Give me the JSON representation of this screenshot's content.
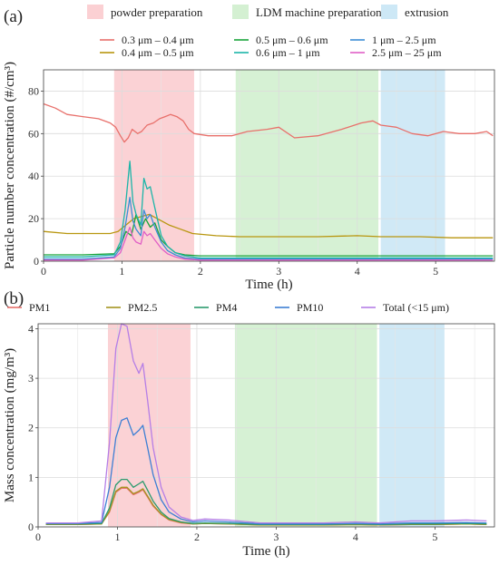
{
  "chart_data": [
    {
      "panel_label": "(a)",
      "type": "line",
      "xlabel": "Time (h)",
      "ylabel": "Particle number concentration (#/cm³)",
      "xlim": [
        0,
        5.75
      ],
      "ylim": [
        0,
        90
      ],
      "xticks": [
        0,
        1,
        2,
        3,
        4,
        5
      ],
      "yticks": [
        0,
        20,
        40,
        60,
        80
      ],
      "grid": true,
      "legend_position": "top",
      "phases": [
        {
          "label": "powder preparation",
          "x0": 0.9,
          "x1": 1.92,
          "color": "#fbd0d3"
        },
        {
          "label": "LDM machine preparation",
          "x0": 2.45,
          "x1": 4.27,
          "color": "#d4f0d2"
        },
        {
          "label": "extrusion",
          "x0": 4.3,
          "x1": 5.12,
          "color": "#cde8f6"
        }
      ],
      "series": [
        {
          "name": "0.3 μm – 0.4 μm",
          "color": "#e8706b",
          "x": [
            0,
            0.15,
            0.3,
            0.5,
            0.7,
            0.85,
            0.92,
            0.98,
            1.03,
            1.08,
            1.13,
            1.2,
            1.25,
            1.32,
            1.4,
            1.48,
            1.55,
            1.62,
            1.7,
            1.78,
            1.85,
            1.92,
            2.1,
            2.4,
            2.6,
            2.85,
            3.0,
            3.2,
            3.5,
            3.8,
            4.05,
            4.2,
            4.3,
            4.5,
            4.7,
            4.9,
            5.1,
            5.3,
            5.5,
            5.65,
            5.73
          ],
          "y": [
            74,
            72,
            69,
            68,
            67,
            65,
            63,
            59,
            56,
            58,
            62,
            60,
            61,
            64,
            65,
            67,
            68,
            69,
            68,
            66,
            62,
            60,
            59,
            59,
            61,
            62,
            63,
            58,
            59,
            62,
            65,
            66,
            64,
            63,
            60,
            59,
            61,
            60,
            60,
            61,
            59
          ]
        },
        {
          "name": "0.4 μm – 0.5 μm",
          "color": "#b8960f",
          "x": [
            0,
            0.3,
            0.6,
            0.85,
            0.95,
            1.05,
            1.15,
            1.25,
            1.35,
            1.45,
            1.6,
            1.75,
            1.9,
            2.2,
            2.5,
            3.0,
            3.5,
            4.0,
            4.3,
            4.8,
            5.2,
            5.73
          ],
          "y": [
            14,
            13,
            13,
            13,
            14,
            17,
            20,
            21,
            22,
            20,
            17,
            15,
            13,
            12,
            11.5,
            11.5,
            11.5,
            12,
            11.5,
            11.5,
            11,
            11
          ]
        },
        {
          "name": "0.5 μm – 0.6 μm",
          "color": "#19a33b",
          "x": [
            0,
            0.5,
            0.9,
            0.98,
            1.05,
            1.12,
            1.18,
            1.24,
            1.3,
            1.36,
            1.42,
            1.5,
            1.58,
            1.68,
            1.8,
            2.0,
            2.5,
            3.0,
            3.5,
            4.0,
            4.5,
            5.0,
            5.73
          ],
          "y": [
            3,
            3,
            3.5,
            7,
            14,
            12,
            22,
            15,
            20,
            16,
            18,
            10,
            7,
            4,
            3,
            2.5,
            2.5,
            2.5,
            2.5,
            2.5,
            2.5,
            2.5,
            2.5
          ]
        },
        {
          "name": "0.6 μm – 1 μm",
          "color": "#1bb5a8",
          "x": [
            0,
            0.5,
            0.9,
            0.98,
            1.04,
            1.1,
            1.14,
            1.18,
            1.24,
            1.28,
            1.32,
            1.36,
            1.42,
            1.5,
            1.58,
            1.68,
            1.8,
            2.0,
            2.5,
            3.0,
            3.5,
            4.0,
            4.5,
            5.0,
            5.73
          ],
          "y": [
            2,
            2,
            3,
            9,
            24,
            47,
            28,
            22,
            17,
            39,
            34,
            35,
            25,
            12,
            7,
            4,
            2.5,
            1.5,
            1.5,
            1.5,
            1.5,
            1.5,
            1.5,
            1.5,
            1.5
          ]
        },
        {
          "name": "1 μm – 2.5 μm",
          "color": "#3c8dd6",
          "x": [
            0,
            0.5,
            0.9,
            0.98,
            1.04,
            1.1,
            1.14,
            1.18,
            1.24,
            1.28,
            1.32,
            1.36,
            1.42,
            1.5,
            1.58,
            1.68,
            1.8,
            2.0,
            2.5,
            3.0,
            3.5,
            4.0,
            4.5,
            5.0,
            5.73
          ],
          "y": [
            1,
            1,
            2,
            6,
            16,
            30,
            19,
            15,
            12,
            24,
            20,
            22,
            16,
            9,
            5,
            3,
            1.5,
            1,
            1,
            1,
            1,
            1,
            1,
            1,
            1
          ]
        },
        {
          "name": "2.5 μm – 25 μm",
          "color": "#e05fc6",
          "x": [
            0,
            0.5,
            0.9,
            0.98,
            1.04,
            1.1,
            1.14,
            1.18,
            1.24,
            1.28,
            1.32,
            1.36,
            1.42,
            1.5,
            1.58,
            1.68,
            1.8,
            2.0,
            2.5,
            3.0,
            3.5,
            4.0,
            4.5,
            5.0,
            5.73
          ],
          "y": [
            0.5,
            0.5,
            1.5,
            4,
            10,
            16,
            11,
            9,
            8,
            14,
            12,
            13,
            10,
            6,
            3.5,
            2,
            1,
            0.5,
            0.5,
            0.5,
            0.5,
            0.5,
            0.5,
            0.5,
            0.5
          ]
        }
      ]
    },
    {
      "panel_label": "(b)",
      "type": "line",
      "xlabel": "Time (h)",
      "ylabel": "Mass concentration (mg/m³)",
      "xlim": [
        0,
        5.75
      ],
      "ylim": [
        0,
        4.1
      ],
      "xticks": [
        0,
        1,
        2,
        3,
        4,
        5
      ],
      "yticks": [
        0,
        1,
        2,
        3,
        4
      ],
      "grid": true,
      "legend_position": "top",
      "phases": [
        {
          "label": "powder preparation",
          "x0": 0.88,
          "x1": 1.92,
          "color": "#fbd0d3"
        },
        {
          "label": "LDM machine preparation",
          "x0": 2.48,
          "x1": 4.27,
          "color": "#d4f0d2"
        },
        {
          "label": "extrusion",
          "x0": 4.3,
          "x1": 5.12,
          "color": "#cde8f6"
        }
      ],
      "series": [
        {
          "name": "PM1",
          "color": "#e8706b",
          "x": [
            0.1,
            0.5,
            0.8,
            0.9,
            0.98,
            1.05,
            1.12,
            1.2,
            1.27,
            1.32,
            1.38,
            1.45,
            1.55,
            1.65,
            1.8,
            1.95,
            2.1,
            2.4,
            2.8,
            3.2,
            3.6,
            4.0,
            4.3,
            4.7,
            5.0,
            5.4,
            5.65
          ],
          "y": [
            0.05,
            0.05,
            0.06,
            0.3,
            0.7,
            0.78,
            0.78,
            0.65,
            0.7,
            0.75,
            0.6,
            0.42,
            0.25,
            0.14,
            0.08,
            0.06,
            0.07,
            0.06,
            0.04,
            0.04,
            0.04,
            0.05,
            0.04,
            0.05,
            0.05,
            0.06,
            0.05
          ]
        },
        {
          "name": "PM2.5",
          "color": "#a39420",
          "x": [
            0.1,
            0.5,
            0.8,
            0.9,
            0.98,
            1.05,
            1.12,
            1.2,
            1.27,
            1.32,
            1.38,
            1.45,
            1.55,
            1.65,
            1.8,
            1.95,
            2.1,
            2.4,
            2.8,
            3.2,
            3.6,
            4.0,
            4.3,
            4.7,
            5.0,
            5.4,
            5.65
          ],
          "y": [
            0.05,
            0.05,
            0.06,
            0.32,
            0.72,
            0.8,
            0.8,
            0.67,
            0.72,
            0.77,
            0.62,
            0.44,
            0.26,
            0.15,
            0.09,
            0.06,
            0.07,
            0.06,
            0.04,
            0.04,
            0.04,
            0.05,
            0.04,
            0.05,
            0.05,
            0.06,
            0.05
          ]
        },
        {
          "name": "PM4",
          "color": "#2b9b6e",
          "x": [
            0.1,
            0.5,
            0.8,
            0.9,
            0.98,
            1.05,
            1.12,
            1.2,
            1.27,
            1.32,
            1.38,
            1.45,
            1.55,
            1.65,
            1.8,
            1.95,
            2.1,
            2.4,
            2.8,
            3.2,
            3.6,
            4.0,
            4.3,
            4.7,
            5.0,
            5.4,
            5.65
          ],
          "y": [
            0.06,
            0.06,
            0.07,
            0.38,
            0.85,
            0.96,
            0.96,
            0.8,
            0.87,
            0.92,
            0.74,
            0.52,
            0.3,
            0.17,
            0.1,
            0.07,
            0.08,
            0.07,
            0.05,
            0.05,
            0.05,
            0.06,
            0.05,
            0.06,
            0.06,
            0.07,
            0.06
          ]
        },
        {
          "name": "PM10",
          "color": "#3d7fd4",
          "x": [
            0.1,
            0.5,
            0.8,
            0.9,
            0.98,
            1.05,
            1.12,
            1.2,
            1.27,
            1.32,
            1.38,
            1.45,
            1.55,
            1.65,
            1.8,
            1.95,
            2.1,
            2.4,
            2.8,
            3.2,
            3.6,
            4.0,
            4.3,
            4.7,
            5.0,
            5.4,
            5.65
          ],
          "y": [
            0.07,
            0.07,
            0.09,
            0.8,
            1.8,
            2.15,
            2.2,
            1.85,
            1.95,
            2.05,
            1.6,
            1.05,
            0.55,
            0.3,
            0.16,
            0.1,
            0.12,
            0.1,
            0.06,
            0.06,
            0.06,
            0.07,
            0.06,
            0.08,
            0.08,
            0.09,
            0.08
          ]
        },
        {
          "name": "Total (<15 μm)",
          "color": "#b57ee6",
          "x": [
            0.1,
            0.5,
            0.8,
            0.9,
            0.98,
            1.05,
            1.12,
            1.2,
            1.27,
            1.32,
            1.38,
            1.45,
            1.55,
            1.65,
            1.8,
            1.95,
            2.1,
            2.4,
            2.8,
            3.2,
            3.6,
            4.0,
            4.3,
            4.7,
            5.0,
            5.4,
            5.65
          ],
          "y": [
            0.08,
            0.08,
            0.12,
            1.7,
            3.6,
            4.1,
            4.05,
            3.35,
            3.1,
            3.3,
            2.55,
            1.6,
            0.8,
            0.4,
            0.2,
            0.13,
            0.16,
            0.14,
            0.08,
            0.08,
            0.08,
            0.1,
            0.08,
            0.12,
            0.12,
            0.14,
            0.12
          ]
        }
      ]
    }
  ]
}
